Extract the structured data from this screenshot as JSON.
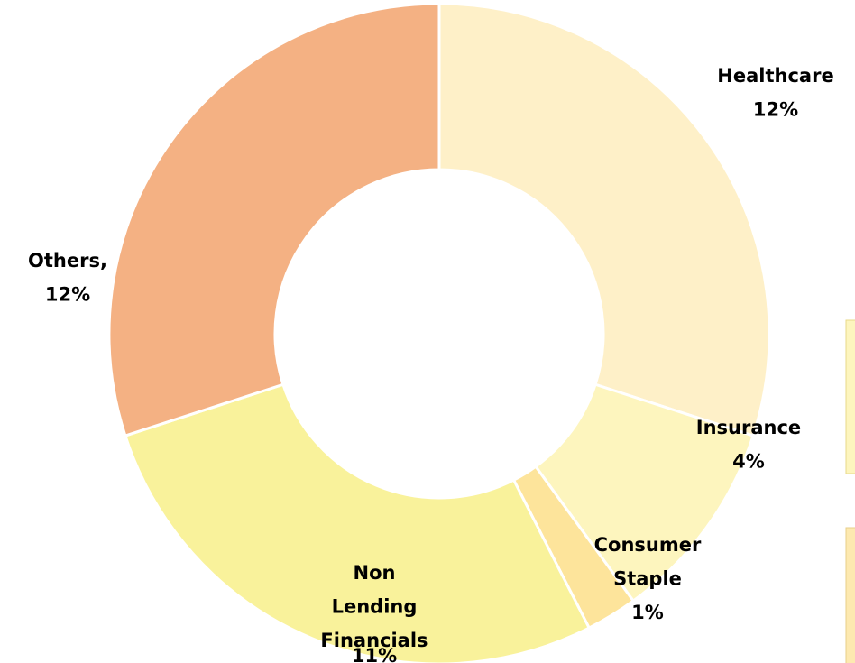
{
  "chart_data": {
    "type": "donut",
    "categories": [
      "Healthcare",
      "Insurance",
      "Consumer Staple",
      "Non Lending Financials",
      "Others,"
    ],
    "values": [
      12,
      4,
      1,
      11,
      12
    ],
    "value_labels": [
      "12%",
      "4%",
      "1%",
      "11%",
      "12%"
    ],
    "colors": [
      "#fef0c8",
      "#fdf5be",
      "#fde49b",
      "#f9f29b",
      "#f4b183"
    ]
  }
}
